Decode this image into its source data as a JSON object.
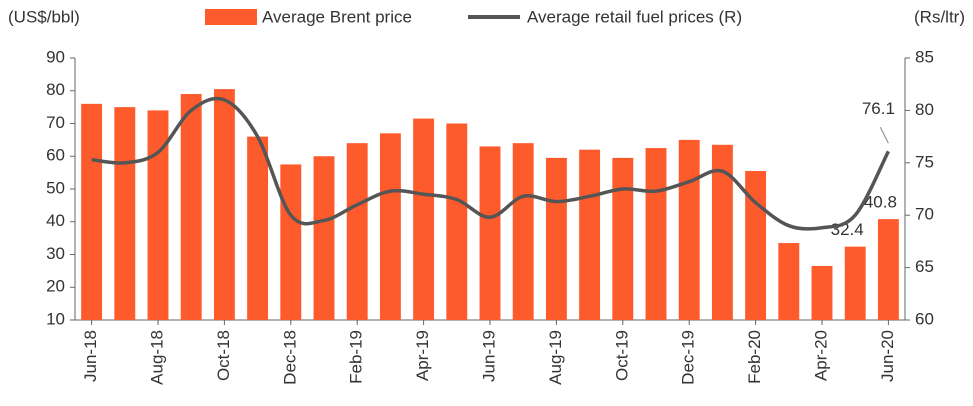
{
  "chart_data": {
    "type": "bar-line",
    "y_label": "(US$/bbl)",
    "y2_label": "(Rs/ltr)",
    "categories": [
      "Jun-18",
      null,
      "Aug-18",
      null,
      "Oct-18",
      null,
      "Dec-18",
      null,
      "Feb-19",
      null,
      "Apr-19",
      null,
      "Jun-19",
      null,
      "Aug-19",
      null,
      "Oct-19",
      null,
      "Dec-19",
      null,
      "Feb-20",
      null,
      "Apr-20",
      null,
      "Jun-20"
    ],
    "series": [
      {
        "name": "Average Brent price",
        "type": "bar",
        "color": "#fe5b2c",
        "values": [
          76,
          75,
          74,
          79,
          80.5,
          66,
          57.5,
          60,
          64,
          67,
          71.5,
          70,
          63,
          64,
          59.5,
          62,
          59.5,
          62.5,
          65,
          63.5,
          55.5,
          33.5,
          26.5,
          32.4,
          40.8
        ],
        "value_labels": [
          null,
          null,
          null,
          null,
          null,
          null,
          null,
          null,
          null,
          null,
          null,
          null,
          null,
          null,
          null,
          null,
          null,
          null,
          null,
          null,
          null,
          null,
          null,
          "32.4",
          "40.8"
        ]
      },
      {
        "name": "Average retail fuel prices (R)",
        "type": "line",
        "axis": "y2",
        "color": "#555555",
        "values": [
          75.3,
          75.0,
          76.0,
          80.0,
          81.0,
          77.5,
          70.0,
          69.5,
          71.0,
          72.3,
          72.0,
          71.5,
          69.8,
          71.8,
          71.3,
          71.8,
          72.5,
          72.3,
          73.2,
          74.2,
          71.2,
          69.0,
          68.8,
          70.0,
          76.1
        ],
        "value_labels": [
          null,
          null,
          null,
          null,
          null,
          null,
          null,
          null,
          null,
          null,
          null,
          null,
          null,
          null,
          null,
          null,
          null,
          null,
          null,
          null,
          null,
          null,
          null,
          null,
          "76.1"
        ]
      }
    ],
    "ylim": [
      10,
      90
    ],
    "yticks": [
      10,
      20,
      30,
      40,
      50,
      60,
      70,
      80,
      90
    ],
    "y2lim": [
      60,
      85
    ],
    "y2ticks": [
      60,
      65,
      70,
      75,
      80,
      85
    ]
  }
}
